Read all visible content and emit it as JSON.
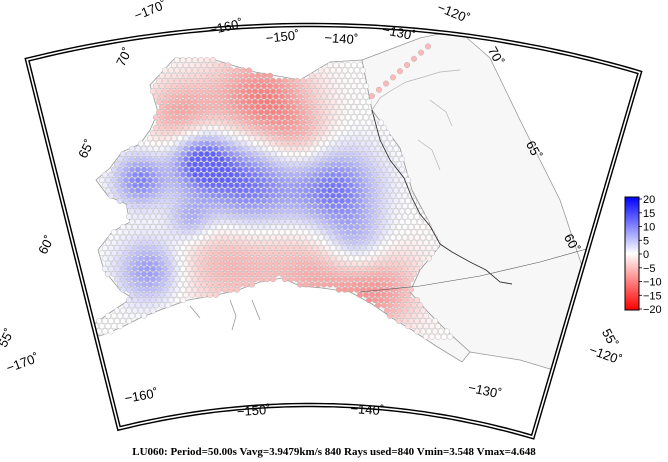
{
  "map": {
    "top_lon_labels": [
      "−170˚",
      "−160˚",
      "−150˚",
      "−140˚",
      "−130˚",
      "−120˚"
    ],
    "bottom_lon_labels": [
      "−170˚",
      "−160˚",
      "−150˚",
      "−140˚",
      "−130˚",
      "−120˚"
    ],
    "left_lat_labels": [
      "55˚",
      "60˚",
      "65˚",
      "70˚"
    ],
    "right_lat_labels": [
      "55˚",
      "60˚",
      "65˚",
      "70˚"
    ],
    "region_fill": "#f7f7f7",
    "coast_color": "#9a9a9a",
    "border_color": "#333333"
  },
  "colorbar": {
    "ticks": [
      "20",
      "15",
      "10",
      "5",
      "0",
      "−5",
      "−10",
      "−15",
      "−20"
    ],
    "min": -20,
    "max": 20,
    "colors": {
      "high": "#0000ff",
      "mid": "#ffffff",
      "low": "#ff0000"
    }
  },
  "caption": "LU060: Period=50.00s Vavg=3.9479km/s 840 Rays used=840 Vmin=3.548 Vmax=4.648"
}
